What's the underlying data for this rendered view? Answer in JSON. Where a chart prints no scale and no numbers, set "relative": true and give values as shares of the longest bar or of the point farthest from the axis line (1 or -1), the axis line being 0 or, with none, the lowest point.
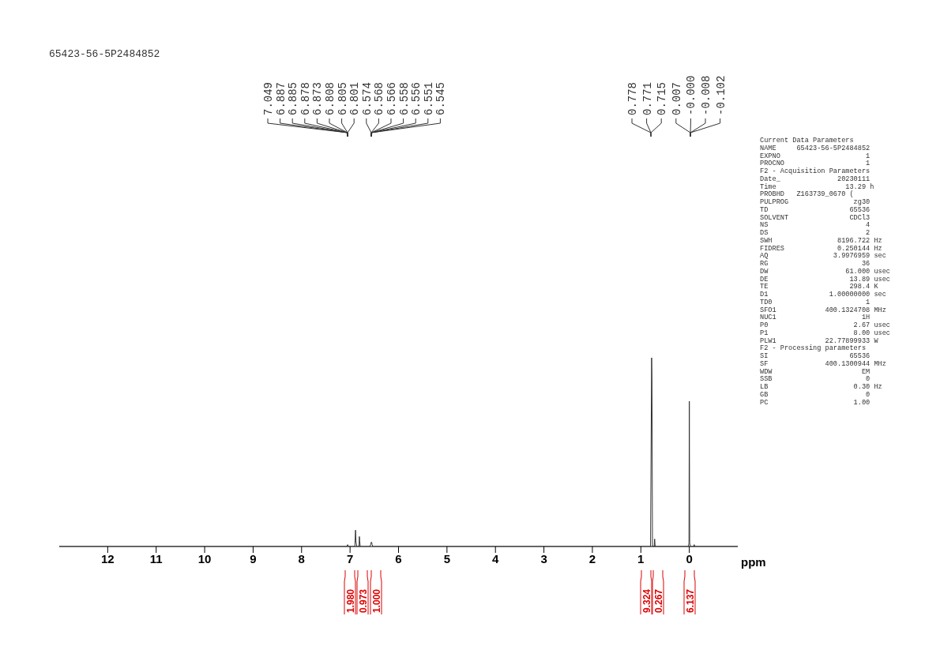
{
  "chart_data": {
    "type": "line",
    "title": "65423-56-5P2484852",
    "xlabel": "ppm",
    "relative": true,
    "grid": false,
    "legend": false,
    "marker": "none",
    "line_style": "solid",
    "xlim": [
      13,
      -1
    ],
    "xticks": [
      12,
      11,
      10,
      9,
      8,
      7,
      6,
      5,
      4,
      3,
      2,
      1,
      0
    ],
    "series": [
      {
        "color": "#333333",
        "x": [
          13,
          7.07,
          7.049,
          7.03,
          6.9,
          6.887,
          6.885,
          6.878,
          6.873,
          6.86,
          6.815,
          6.808,
          6.805,
          6.801,
          6.79,
          6.59,
          6.574,
          6.566,
          6.558,
          6.551,
          6.545,
          6.53,
          0.8,
          0.778,
          0.771,
          0.76,
          0.725,
          0.715,
          0.705,
          0.02,
          0.007,
          0,
          -0.008,
          -0.02,
          -0.09,
          -0.102,
          -0.11,
          -1
        ],
        "values": [
          0,
          0,
          0.01,
          0,
          0,
          0.087,
          0.08,
          0.03,
          0.02,
          0,
          0,
          0.053,
          0.05,
          0.03,
          0,
          0,
          0.01,
          0.02,
          0.024,
          0.02,
          0.01,
          0,
          0,
          1,
          0.9,
          0,
          0,
          0.04,
          0,
          0,
          0.02,
          0.77,
          0.02,
          0,
          0,
          0.01,
          0,
          0
        ]
      }
    ],
    "annotations": [
      "7.049",
      "6.887",
      "6.885",
      "6.878",
      "6.873",
      "6.808",
      "6.805",
      "6.801",
      "6.574",
      "6.568",
      "6.566",
      "6.558",
      "6.556",
      "6.551",
      "6.545",
      "0.778",
      "0.771",
      "0.715",
      "0.007",
      "-0.000",
      "-0.008",
      "-0.102",
      "1.980",
      "0.973",
      "1.000",
      "9.324",
      "0.267",
      "6.137",
      "Current Data Parameters",
      "NAME     65423-56-5P2484852",
      "EXPNO                     1",
      "PROCNO                    1",
      "F2 - Acquisition Parameters",
      "Date_              20230111",
      "Time                 13.29 h",
      "PROBHD   Z163739_0670 (",
      "PULPROG                zg30",
      "TD                    65536",
      "SOLVENT               CDCl3",
      "NS                        4",
      "DS                        2",
      "SWH                8196.722 Hz",
      "FIDRES             0.250144 Hz",
      "AQ                3.9976959 sec",
      "RG                       36",
      "DW                   61.000 usec",
      "DE                    13.89 usec",
      "TE                    298.4 K",
      "D1               1.00000000 sec",
      "TD0                       1",
      "SFO1            400.1324708 MHz",
      "NUC1                     1H",
      "P0                     2.67 usec",
      "P1                     8.00 usec",
      "PLW1            22.77899933 W",
      "F2 - Processing parameters",
      "SI                    65536",
      "SF              400.1300944 MHz",
      "WDW                      EM",
      "SSB                       0",
      "LB                     0.30 Hz",
      "GB                        0",
      "PC                     1.00"
    ]
  }
}
